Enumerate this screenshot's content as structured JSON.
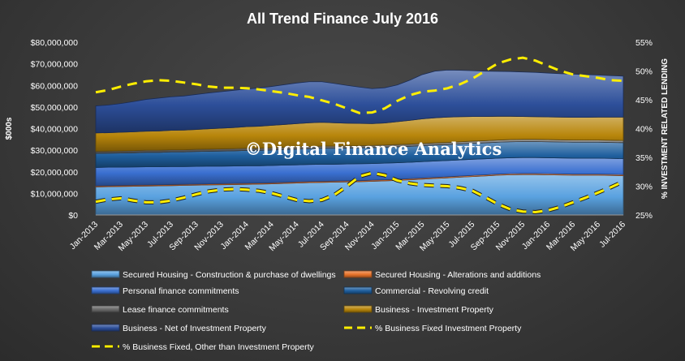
{
  "chart_data": {
    "type": "area",
    "title": "All Trend Finance July 2016",
    "ylabel": "$000s",
    "y2label": "% INVESTMENT RELATED LENDING",
    "ylim": [
      0,
      80000000
    ],
    "y2lim": [
      25,
      55
    ],
    "yticks": [
      "$0",
      "$10,000,000",
      "$20,000,000",
      "$30,000,000",
      "$40,000,000",
      "$50,000,000",
      "$60,000,000",
      "$70,000,000",
      "$80,000,000"
    ],
    "y2ticks": [
      "25%",
      "30%",
      "35%",
      "40%",
      "45%",
      "50%",
      "55%"
    ],
    "x": [
      "Jan-2013",
      "Feb-2013",
      "Mar-2013",
      "Apr-2013",
      "May-2013",
      "Jun-2013",
      "Jul-2013",
      "Aug-2013",
      "Sep-2013",
      "Oct-2013",
      "Nov-2013",
      "Dec-2013",
      "Jan-2014",
      "Feb-2014",
      "Mar-2014",
      "Apr-2014",
      "May-2014",
      "Jun-2014",
      "Jul-2014",
      "Aug-2014",
      "Sep-2014",
      "Oct-2014",
      "Nov-2014",
      "Dec-2014",
      "Jan-2015",
      "Feb-2015",
      "Mar-2015",
      "Apr-2015",
      "May-2015",
      "Jun-2015",
      "Jul-2015",
      "Aug-2015",
      "Sep-2015",
      "Oct-2015",
      "Nov-2015",
      "Dec-2015",
      "Jan-2016",
      "Feb-2016",
      "Mar-2016",
      "Apr-2016",
      "May-2016",
      "Jun-2016",
      "Jul-2016"
    ],
    "xtick_labels": [
      "Jan-2013",
      "Mar-2013",
      "May-2013",
      "Jul-2013",
      "Sep-2013",
      "Nov-2013",
      "Jan-2014",
      "Mar-2014",
      "May-2014",
      "Jul-2014",
      "Sep-2014",
      "Nov-2014",
      "Jan-2015",
      "Mar-2015",
      "May-2015",
      "Jul-2015",
      "Sep-2015",
      "Nov-2015",
      "Jan-2016",
      "Mar-2016",
      "May-2016",
      "Jul-2016"
    ],
    "stacked": true,
    "series": [
      {
        "name": "Secured Housing - Construction & purchase of dwellings",
        "axis": "left",
        "color": "#5aa2e0",
        "values": [
          13000000,
          13100000,
          13200000,
          13300000,
          13400000,
          13500000,
          13600000,
          13700000,
          13800000,
          13900000,
          14000000,
          14100000,
          14200000,
          14300000,
          14400000,
          14600000,
          14800000,
          15000000,
          15100000,
          15200000,
          15300000,
          15400000,
          15600000,
          15800000,
          16000000,
          16300000,
          16600000,
          16900000,
          17200000,
          17500000,
          17800000,
          18100000,
          18400000,
          18600000,
          18700000,
          18700000,
          18600000,
          18500000,
          18400000,
          18400000,
          18400000,
          18300000,
          18200000
        ]
      },
      {
        "name": "Secured Housing - Alterations and additions",
        "axis": "left",
        "color": "#e8732a",
        "values": [
          500000,
          500000,
          500000,
          500000,
          500000,
          500000,
          500000,
          500000,
          500000,
          500000,
          500000,
          500000,
          500000,
          500000,
          500000,
          500000,
          500000,
          500000,
          500000,
          500000,
          500000,
          500000,
          500000,
          500000,
          500000,
          500000,
          500000,
          500000,
          500000,
          500000,
          500000,
          500000,
          500000,
          500000,
          500000,
          500000,
          500000,
          500000,
          500000,
          500000,
          500000,
          500000,
          500000
        ]
      },
      {
        "name": "Personal finance commitments",
        "axis": "left",
        "color": "#3a6fd0",
        "values": [
          8500000,
          8500000,
          8400000,
          8400000,
          8400000,
          8300000,
          8300000,
          8200000,
          8200000,
          8200000,
          8100000,
          8100000,
          8100000,
          8000000,
          8000000,
          8000000,
          7900000,
          7900000,
          7900000,
          7800000,
          7800000,
          7800000,
          7700000,
          7700000,
          7700000,
          7600000,
          7600000,
          7600000,
          7500000,
          7500000,
          7500000,
          7400000,
          7400000,
          7400000,
          7400000,
          7400000,
          7400000,
          7400000,
          7400000,
          7400000,
          7400000,
          7400000,
          7400000
        ]
      },
      {
        "name": "Commercial - Revolving credit",
        "axis": "left",
        "color": "#1f5f9e",
        "values": [
          6500000,
          6500000,
          6600000,
          6600000,
          6700000,
          6700000,
          6800000,
          6800000,
          6900000,
          6900000,
          7000000,
          7000000,
          7100000,
          7100000,
          7200000,
          7200000,
          7300000,
          7300000,
          7400000,
          7400000,
          7400000,
          7400000,
          7400000,
          7400000,
          7400000,
          7400000,
          7400000,
          7400000,
          7400000,
          7400000,
          7400000,
          7400000,
          7400000,
          7400000,
          7400000,
          7400000,
          7400000,
          7400000,
          7400000,
          7400000,
          7400000,
          7400000,
          7400000
        ]
      },
      {
        "name": "Lease finance commitments",
        "axis": "left",
        "color": "#6a6a6a",
        "values": [
          1000000,
          1000000,
          1000000,
          1000000,
          1000000,
          1000000,
          1000000,
          1000000,
          1000000,
          1000000,
          1000000,
          1000000,
          1000000,
          1000000,
          1000000,
          1000000,
          1000000,
          1000000,
          1000000,
          1000000,
          1000000,
          1000000,
          1000000,
          1000000,
          1000000,
          1000000,
          1000000,
          1000000,
          1000000,
          1000000,
          1000000,
          1000000,
          1000000,
          1000000,
          1000000,
          1000000,
          1000000,
          1000000,
          1000000,
          1000000,
          1000000,
          1000000,
          1000000
        ]
      },
      {
        "name": "Business - Investment Property",
        "axis": "left",
        "color": "#b8860b",
        "values": [
          8500000,
          8500000,
          8600000,
          8700000,
          8800000,
          8900000,
          9000000,
          9100000,
          9200000,
          9400000,
          9600000,
          9800000,
          10000000,
          10200000,
          10400000,
          10600000,
          10800000,
          11000000,
          11000000,
          10800000,
          10500000,
          10300000,
          10100000,
          10200000,
          10600000,
          11000000,
          11400000,
          11600000,
          11700000,
          11600000,
          11400000,
          11200000,
          11000000,
          10800000,
          10600000,
          10500000,
          10500000,
          10500000,
          10500000,
          10500000,
          10600000,
          10700000,
          10800000
        ]
      },
      {
        "name": "Business - Net of Investment Property",
        "axis": "left",
        "color": "#2d4f9a",
        "values": [
          12500000,
          12800000,
          13300000,
          14000000,
          14700000,
          15200000,
          15500000,
          15800000,
          16200000,
          16600000,
          16900000,
          17200000,
          17400000,
          17700000,
          18000000,
          18400000,
          18800000,
          19000000,
          18800000,
          18200000,
          17500000,
          16800000,
          16200000,
          16300000,
          17000000,
          18600000,
          20500000,
          21600000,
          21800000,
          21500000,
          21200000,
          21000000,
          20800000,
          20700000,
          20600000,
          20500000,
          20300000,
          20100000,
          20000000,
          19800000,
          19500000,
          19200000,
          19000000
        ]
      },
      {
        "name": "% Business Fixed Investment Property",
        "axis": "right",
        "color": "#ffee00",
        "style": "dashed",
        "values": [
          46.3,
          46.7,
          47.3,
          47.8,
          48.2,
          48.4,
          48.3,
          48.0,
          47.7,
          47.3,
          47.1,
          47.1,
          47.0,
          46.8,
          46.5,
          46.2,
          45.8,
          45.5,
          44.9,
          44.3,
          43.5,
          42.7,
          42.8,
          43.5,
          44.8,
          45.8,
          46.4,
          46.6,
          47.0,
          47.7,
          48.7,
          50.0,
          51.3,
          52.0,
          52.3,
          51.8,
          50.9,
          50.0,
          49.4,
          49.1,
          48.8,
          48.4,
          48.3
        ]
      },
      {
        "name": "% Business Fixed, Other than Investment Property",
        "axis": "right",
        "color": "#ffee00",
        "style": "dashed-outline",
        "values": [
          27.3,
          27.7,
          27.9,
          27.5,
          27.2,
          27.2,
          27.5,
          28.0,
          28.6,
          29.1,
          29.4,
          29.5,
          29.4,
          29.2,
          28.8,
          28.2,
          27.6,
          27.4,
          27.6,
          28.5,
          30.0,
          31.7,
          32.3,
          31.9,
          31.0,
          30.5,
          30.2,
          30.1,
          30.0,
          29.7,
          29.2,
          28.1,
          26.9,
          26.0,
          25.6,
          25.5,
          25.8,
          26.4,
          27.2,
          28.0,
          28.9,
          29.8,
          30.8
        ]
      }
    ],
    "legend_position": "bottom",
    "watermark": "©Digital Finance Analytics"
  }
}
